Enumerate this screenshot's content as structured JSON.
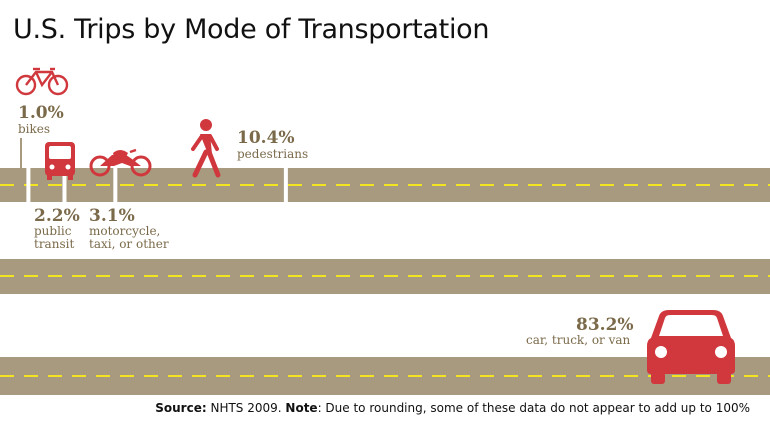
{
  "title": "U.S. Trips by Mode of Transportation",
  "chart_data": {
    "type": "bar",
    "title": "U.S. Trips by Mode of Transportation",
    "unit": "%",
    "categories": [
      "bikes",
      "public transit",
      "motorcycle, taxi, or other",
      "pedestrians",
      "car, truck, or van"
    ],
    "values": [
      1.0,
      2.2,
      3.1,
      10.4,
      83.2
    ],
    "value_labels": [
      "1.0%",
      "2.2%",
      "3.1%",
      "10.4%",
      "83.2%"
    ],
    "label_lines": [
      [
        "bikes"
      ],
      [
        "public",
        "transit"
      ],
      [
        "motorcycle,",
        "taxi, or other"
      ],
      [
        "pedestrians"
      ],
      [
        "car, truck, or van"
      ]
    ]
  },
  "source": {
    "source_label": "Source:",
    "source_text": " NHTS 2009. ",
    "note_label": "Note",
    "note_text": ": Due to rounding, some of these data do not appear to add up to 100%"
  },
  "colors": {
    "road": "#a89a7f",
    "dash": "#f2e520",
    "icon": "#d0383d",
    "text": "#7a6a4a"
  },
  "icons": [
    "bicycle-icon",
    "bus-icon",
    "motorcycle-icon",
    "pedestrian-icon",
    "car-icon"
  ]
}
